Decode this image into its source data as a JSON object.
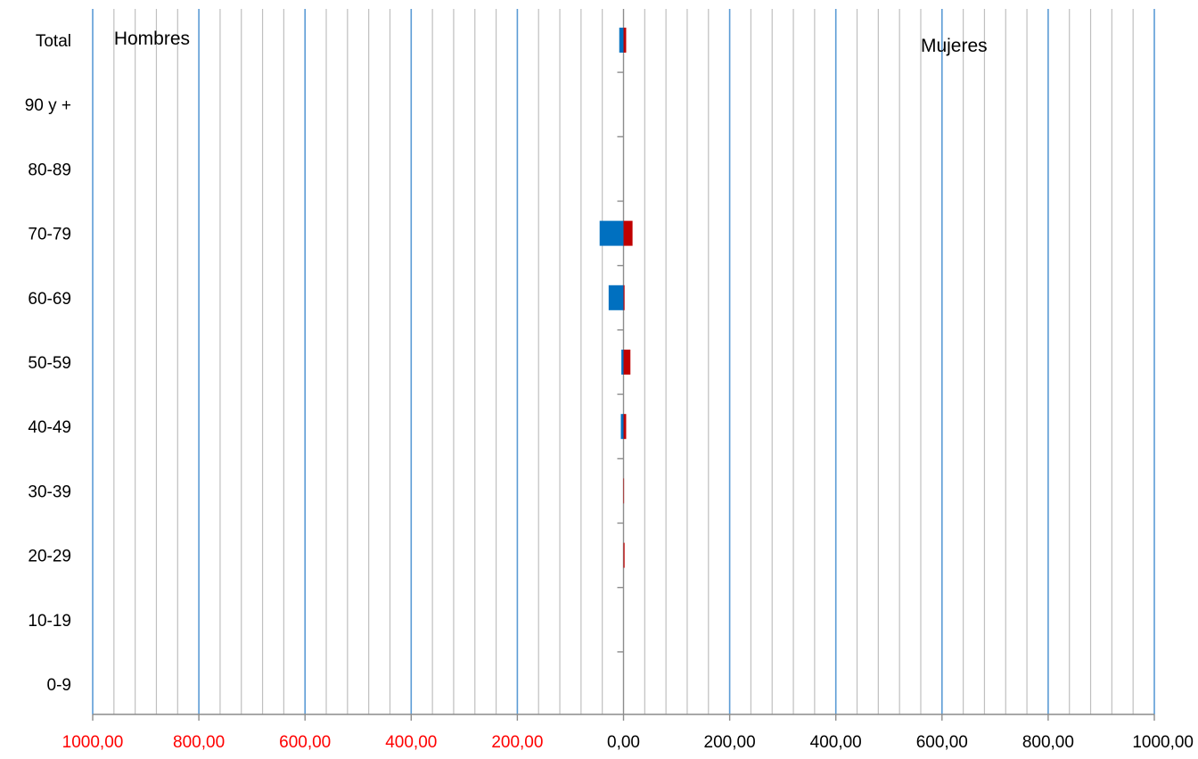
{
  "chart_data": {
    "type": "bar",
    "orientation": "horizontal",
    "layout": "population-pyramid",
    "categories": [
      "0-9",
      "10-19",
      "20-29",
      "30-39",
      "40-49",
      "50-59",
      "60-69",
      "70-79",
      "80-89",
      "90 y +",
      "Total"
    ],
    "series": [
      {
        "name": "Hombres",
        "side": "left",
        "color": "#0070C0",
        "values": [
          0,
          0,
          0,
          0,
          5,
          4,
          28,
          45,
          0,
          0,
          8
        ]
      },
      {
        "name": "Mujeres",
        "side": "right",
        "color": "#C00000",
        "values": [
          0,
          0,
          2,
          1,
          5,
          13,
          2,
          17,
          0,
          0,
          5
        ]
      }
    ],
    "xlim": [
      -1000,
      1000
    ],
    "x_ticks": [
      {
        "value": -1000,
        "label": "1000,00",
        "color": "#FF0000"
      },
      {
        "value": -800,
        "label": "800,00",
        "color": "#FF0000"
      },
      {
        "value": -600,
        "label": "600,00",
        "color": "#FF0000"
      },
      {
        "value": -400,
        "label": "400,00",
        "color": "#FF0000"
      },
      {
        "value": -200,
        "label": "200,00",
        "color": "#FF0000"
      },
      {
        "value": 0,
        "label": "0,00",
        "color": "#000000"
      },
      {
        "value": 200,
        "label": "200,00",
        "color": "#000000"
      },
      {
        "value": 400,
        "label": "400,00",
        "color": "#000000"
      },
      {
        "value": 600,
        "label": "600,00",
        "color": "#000000"
      },
      {
        "value": 800,
        "label": "800,00",
        "color": "#000000"
      },
      {
        "value": 1000,
        "label": "1000,00",
        "color": "#000000"
      }
    ],
    "annotations": [
      {
        "text": "Hombres",
        "anchor_value": -960
      },
      {
        "text": "Mujeres",
        "anchor_value": 560
      }
    ],
    "title": "",
    "xlabel": "",
    "ylabel": "",
    "grid": {
      "major_every": 200,
      "major_color": "#5B9BD5",
      "minor_every": 40,
      "minor_color": "#BFBFBF"
    },
    "legend": "none"
  }
}
